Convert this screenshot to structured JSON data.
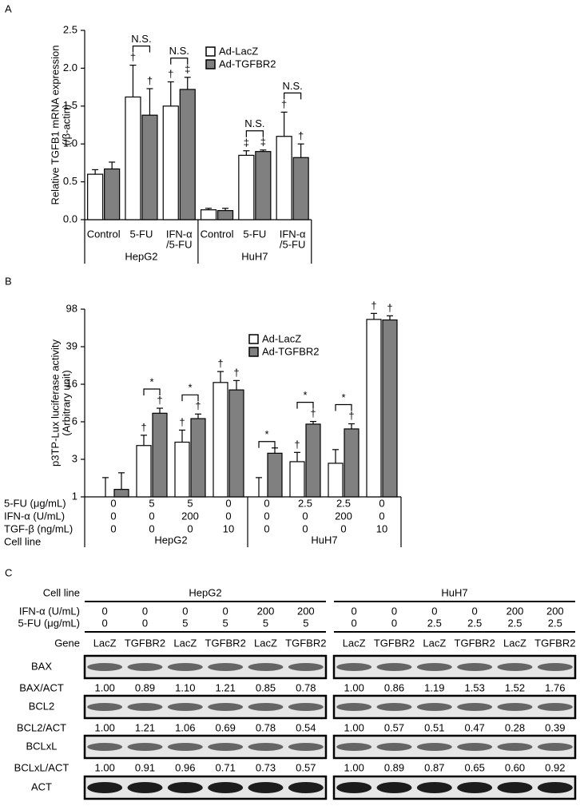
{
  "chart_data": [
    {
      "type": "bar",
      "panel": "A",
      "ylabel": [
        "Relative TGFB1 mRNA expression",
        "(/β-actin)"
      ],
      "categories": [
        [
          "Control"
        ],
        [
          "5-FU"
        ],
        [
          "IFN-α",
          "/5-FU"
        ],
        [
          "Control"
        ],
        [
          "5-FU"
        ],
        [
          "IFN-α",
          "/5-FU"
        ]
      ],
      "groups": [
        "HepG2",
        "HuH7"
      ],
      "series": [
        {
          "name": "Ad-LacZ",
          "color": "#ffffff",
          "values": [
            0.6,
            1.62,
            1.5,
            0.13,
            0.85,
            1.1
          ],
          "errors": [
            0.06,
            0.42,
            0.32,
            0.02,
            0.06,
            0.32
          ],
          "markers": [
            null,
            "†",
            "†",
            null,
            "‡",
            "†"
          ]
        },
        {
          "name": "Ad-TGFBR2",
          "color": "#808080",
          "values": [
            0.67,
            1.38,
            1.72,
            0.12,
            0.9,
            0.82
          ],
          "errors": [
            0.09,
            0.35,
            0.16,
            0.03,
            0.02,
            0.18
          ],
          "markers": [
            null,
            "†",
            "‡",
            null,
            "‡",
            "†"
          ]
        }
      ],
      "bracket_labels": [
        null,
        "N.S.",
        "N.S.",
        null,
        "N.S.",
        "N.S."
      ],
      "ylim": [
        0,
        2.5
      ],
      "yticks": [
        {
          "value": 0,
          "label": "0.0"
        },
        0.5,
        {
          "value": 1,
          "label": "1.0"
        },
        1.5,
        {
          "value": 2,
          "label": "2.0"
        },
        2.5
      ]
    },
    {
      "type": "bar",
      "panel": "B",
      "yscale": "log",
      "ylabel": [
        "p3TP-Lux luciferase activity",
        "(Arbitrary unit)"
      ],
      "conditions": [
        {
          "label": "5-FU (μg/mL)",
          "values": [
            0,
            5,
            5,
            0,
            0,
            2.5,
            2.5,
            0
          ]
        },
        {
          "label": "IFN-α (U/mL)",
          "values": [
            0,
            0,
            200,
            0,
            0,
            0,
            200,
            0
          ]
        },
        {
          "label": "TGF-β (ng/mL)",
          "values": [
            0,
            0,
            0,
            10,
            0,
            0,
            0,
            10
          ]
        }
      ],
      "cell_line_label": "Cell line",
      "groups": [
        "HepG2",
        "HuH7"
      ],
      "series": [
        {
          "name": "Ad-LacZ",
          "color": "#ffffff",
          "values": [
            1.0,
            3.5,
            3.8,
            16.3,
            1.0,
            2.36,
            2.27,
            76
          ],
          "errors": [
            0.6,
            1.0,
            1.3,
            5,
            0.6,
            0.6,
            0.9,
            12
          ],
          "markers": [
            null,
            "†",
            "†",
            "†",
            null,
            "†",
            null,
            "†"
          ]
        },
        {
          "name": "Ad-TGFBR2",
          "color": "#808080",
          "values": [
            1.2,
            7.7,
            6.75,
            13.6,
            2.9,
            5.9,
            5.25,
            75
          ],
          "errors": [
            0.6,
            1.0,
            0.8,
            3.5,
            0.4,
            0.4,
            0.7,
            8
          ],
          "markers": [
            null,
            "†",
            "†",
            "†",
            null,
            "†",
            "†",
            "†"
          ]
        }
      ],
      "bracket_labels": [
        null,
        "*",
        "*",
        null,
        "*",
        "*",
        "*",
        null
      ],
      "ylim": [
        1,
        97.65625
      ],
      "yticks": [
        1,
        {
          "value": 2.5,
          "label": "3"
        },
        {
          "value": 6.25,
          "label": "6"
        },
        {
          "value": 15.625,
          "label": "16"
        },
        {
          "value": 39.0625,
          "label": "39"
        },
        {
          "value": 97.65625,
          "label": "98"
        }
      ]
    }
  ],
  "blot": {
    "panel": "C",
    "cell_line_label": "Cell line",
    "cell_lines": [
      "HepG2",
      "HuH7"
    ],
    "conditions": [
      {
        "label": "IFN-α (U/mL)",
        "values": [
          [
            "0",
            "0",
            "0",
            "0",
            "200",
            "200"
          ],
          [
            "0",
            "0",
            "0",
            "0",
            "200",
            "200"
          ]
        ]
      },
      {
        "label": "5-FU (μg/mL)",
        "values": [
          [
            "0",
            "0",
            "5",
            "5",
            "5",
            "5"
          ],
          [
            "0",
            "0",
            "2.5",
            "2.5",
            "2.5",
            "2.5"
          ]
        ]
      }
    ],
    "gene_label": "Gene",
    "genes": [
      [
        "LacZ",
        "TGFBR2",
        "LacZ",
        "TGFBR2",
        "LacZ",
        "TGFBR2"
      ],
      [
        "LacZ",
        "TGFBR2",
        "LacZ",
        "TGFBR2",
        "LacZ",
        "TGFBR2"
      ]
    ],
    "bands": [
      {
        "name": "BAX",
        "ratio_label": "BAX/ACT",
        "ratios": [
          [
            "1.00",
            "0.89",
            "1.10",
            "1.21",
            "0.85",
            "0.78"
          ],
          [
            "1.00",
            "0.86",
            "1.19",
            "1.53",
            "1.52",
            "1.76"
          ]
        ]
      },
      {
        "name": "BCL2",
        "ratio_label": "BCL2/ACT",
        "ratios": [
          [
            "1.00",
            "1.21",
            "1.06",
            "0.69",
            "0.78",
            "0.54"
          ],
          [
            "1.00",
            "0.57",
            "0.51",
            "0.47",
            "0.28",
            "0.39"
          ]
        ]
      },
      {
        "name": "BCLxL",
        "ratio_label": "BCLxL/ACT",
        "ratios": [
          [
            "1.00",
            "0.91",
            "0.96",
            "0.71",
            "0.73",
            "0.57"
          ],
          [
            "1.00",
            "0.89",
            "0.87",
            "0.65",
            "0.60",
            "0.92"
          ]
        ]
      },
      {
        "name": "ACT"
      }
    ]
  }
}
